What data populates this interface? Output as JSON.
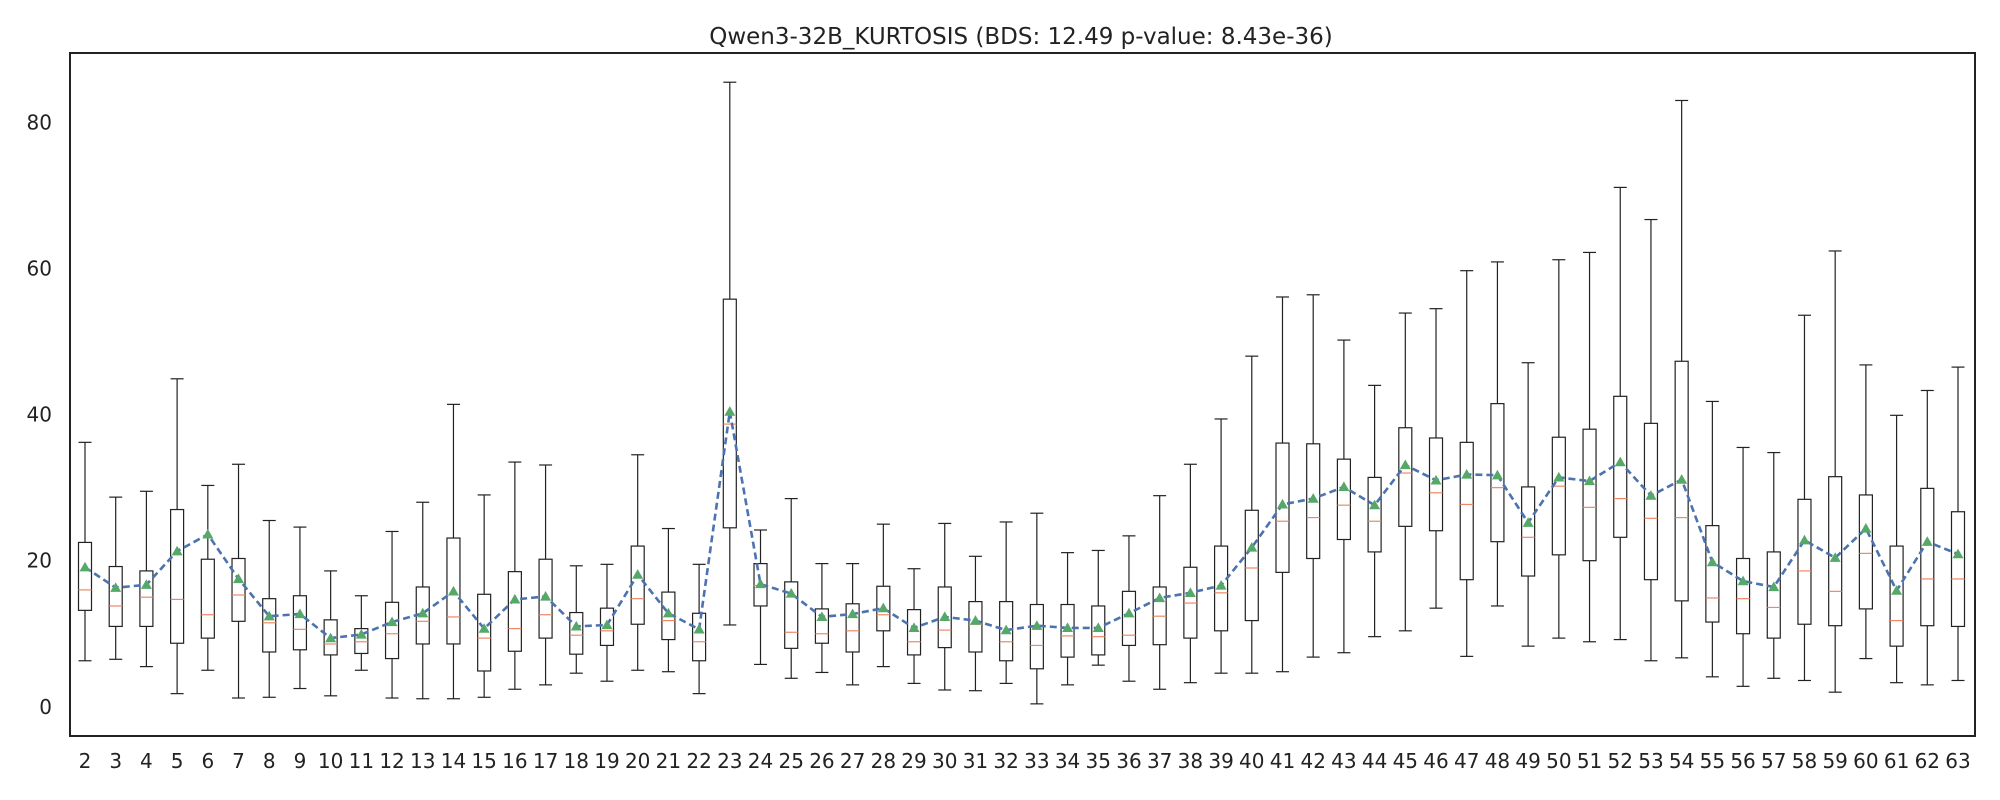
{
  "chart_data": {
    "type": "box",
    "title": "Qwen3-32B_KURTOSIS (BDS: 12.49 p-value: 8.43e-36)",
    "xlabel": "",
    "ylabel": "",
    "ylim": [
      -4,
      89.5
    ],
    "y_ticks": [
      0,
      20,
      40,
      60,
      80
    ],
    "grid": false,
    "colors": {
      "box": "#222222",
      "whisker": "#222222",
      "median": "#ee8866",
      "mean_marker": "#55a868",
      "mean_line": "#4c72b0",
      "axes": "#222222"
    },
    "categories": [
      "2",
      "3",
      "4",
      "5",
      "6",
      "7",
      "8",
      "9",
      "10",
      "11",
      "12",
      "13",
      "14",
      "15",
      "16",
      "17",
      "18",
      "19",
      "20",
      "21",
      "22",
      "23",
      "24",
      "25",
      "26",
      "27",
      "28",
      "29",
      "30",
      "31",
      "32",
      "33",
      "34",
      "35",
      "36",
      "37",
      "38",
      "39",
      "40",
      "41",
      "42",
      "43",
      "44",
      "45",
      "46",
      "47",
      "48",
      "49",
      "50",
      "51",
      "52",
      "53",
      "54",
      "55",
      "56",
      "57",
      "58",
      "59",
      "60",
      "61",
      "62",
      "63"
    ],
    "series": [
      {
        "whisker_low": [
          6.3,
          6.5,
          5.5,
          1.8,
          5.0,
          1.2,
          1.3,
          2.5,
          1.5,
          5.0,
          1.2,
          1.1,
          1.1,
          1.3,
          2.4,
          3.0,
          4.6,
          3.5,
          5.0,
          4.8,
          1.8,
          11.2,
          5.8,
          3.9,
          4.7,
          3.0,
          5.5,
          3.2,
          2.3,
          2.2,
          3.2,
          0.4,
          3.0,
          5.7,
          3.5,
          2.4,
          3.3,
          4.6,
          4.6,
          4.8,
          6.8,
          7.4,
          9.6,
          10.4,
          13.5,
          6.9,
          13.8,
          8.3,
          9.4,
          8.9,
          9.2,
          6.3,
          6.7,
          4.1,
          2.8,
          3.9,
          3.6,
          2.0,
          6.6,
          3.3,
          3.0,
          3.6
        ],
        "q1": [
          13.2,
          11.0,
          11.0,
          8.7,
          9.4,
          11.7,
          7.5,
          7.8,
          7.1,
          7.3,
          6.6,
          8.6,
          8.6,
          4.9,
          7.6,
          9.4,
          7.2,
          8.4,
          11.3,
          9.2,
          6.3,
          24.5,
          13.8,
          8.0,
          8.7,
          7.5,
          10.4,
          7.1,
          8.1,
          7.5,
          6.3,
          5.2,
          6.8,
          7.1,
          8.4,
          8.5,
          9.4,
          10.4,
          11.8,
          18.4,
          20.3,
          22.9,
          21.2,
          24.7,
          24.1,
          17.4,
          22.6,
          17.9,
          20.8,
          20.0,
          23.2,
          17.4,
          14.5,
          11.6,
          10.0,
          9.4,
          11.3,
          11.1,
          13.4,
          8.3,
          11.1,
          11.0
        ],
        "median": [
          16.0,
          13.8,
          15.0,
          14.7,
          12.6,
          15.3,
          11.5,
          10.6,
          8.6,
          8.9,
          10.0,
          11.7,
          12.3,
          9.4,
          10.7,
          12.6,
          9.8,
          10.4,
          14.8,
          11.8,
          8.9,
          38.7,
          16.6,
          10.2,
          10.0,
          10.4,
          12.6,
          8.9,
          10.5,
          11.3,
          8.9,
          8.4,
          9.7,
          9.6,
          9.8,
          12.4,
          14.2,
          15.6,
          19.0,
          25.4,
          25.9,
          27.6,
          25.4,
          32.0,
          29.3,
          27.7,
          30.0,
          23.2,
          30.2,
          27.3,
          28.5,
          25.8,
          25.9,
          14.9,
          14.8,
          13.6,
          18.6,
          15.8,
          21.0,
          11.8,
          17.5,
          17.5
        ],
        "q3": [
          22.5,
          19.2,
          18.6,
          27.0,
          20.2,
          20.3,
          14.8,
          15.2,
          11.9,
          10.7,
          14.3,
          16.4,
          23.1,
          15.4,
          18.5,
          20.2,
          12.9,
          13.5,
          22.0,
          15.7,
          12.8,
          55.8,
          19.6,
          17.1,
          13.4,
          14.1,
          16.5,
          13.3,
          16.4,
          14.4,
          14.4,
          14.0,
          14.0,
          13.8,
          15.8,
          16.4,
          19.1,
          22.0,
          26.9,
          36.1,
          36.0,
          33.9,
          31.4,
          38.2,
          36.8,
          36.2,
          41.5,
          30.1,
          36.9,
          38.0,
          42.5,
          38.8,
          47.3,
          24.8,
          20.3,
          21.2,
          28.4,
          31.5,
          29.0,
          22.0,
          29.9,
          26.7
        ],
        "whisker_high": [
          36.2,
          28.7,
          29.5,
          44.9,
          30.3,
          33.2,
          25.5,
          24.6,
          18.6,
          15.2,
          24.0,
          28.0,
          41.4,
          29.0,
          33.5,
          33.1,
          19.3,
          19.5,
          34.5,
          24.4,
          19.5,
          85.5,
          24.2,
          28.5,
          19.6,
          19.6,
          25.0,
          18.9,
          25.1,
          20.6,
          25.3,
          26.5,
          21.1,
          21.4,
          23.4,
          28.9,
          33.2,
          39.4,
          48.0,
          56.1,
          56.4,
          50.2,
          44.0,
          53.9,
          54.5,
          59.7,
          60.9,
          47.1,
          61.2,
          62.2,
          71.1,
          66.7,
          83.0,
          41.8,
          35.5,
          34.8,
          53.6,
          62.4,
          46.8,
          39.9,
          43.3,
          46.5
        ],
        "mean": [
          19.1,
          16.3,
          16.7,
          21.3,
          23.6,
          17.5,
          12.4,
          12.7,
          9.4,
          9.9,
          11.6,
          12.8,
          15.8,
          10.7,
          14.7,
          15.1,
          11.0,
          11.2,
          18.1,
          12.8,
          10.6,
          40.4,
          16.8,
          15.5,
          12.3,
          12.7,
          13.5,
          10.8,
          12.3,
          11.8,
          10.5,
          11.1,
          10.8,
          10.8,
          12.8,
          14.9,
          15.6,
          16.6,
          21.8,
          27.7,
          28.5,
          30.1,
          27.6,
          33.1,
          31.0,
          31.8,
          31.7,
          25.2,
          31.4,
          30.9,
          33.5,
          28.9,
          31.1,
          19.8,
          17.2,
          16.4,
          22.8,
          20.4,
          24.4,
          15.9,
          22.6,
          20.9
        ]
      }
    ]
  }
}
